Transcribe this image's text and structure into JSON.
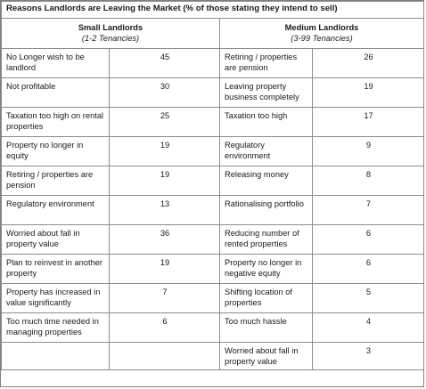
{
  "title": "Reasons Landlords are Leaving the Market (% of those stating they intend to sell)",
  "small": {
    "heading": "Small Landlords",
    "subheading": "(1-2 Tenancies)",
    "rows": [
      {
        "reason": "No Longer wish to be landlord",
        "value": "45"
      },
      {
        "reason": "Not profitable",
        "value": "30"
      },
      {
        "reason": "Taxation too high on rental properties",
        "value": "25"
      },
      {
        "reason": "Property no longer in equity",
        "value": "19"
      },
      {
        "reason": "Retiring / properties are pension",
        "value": "19"
      },
      {
        "reason": "Regulatory environment",
        "value": "13"
      },
      {
        "reason": "Worried about fall in property value",
        "value": "36"
      },
      {
        "reason": "Plan to reinvest in another property",
        "value": "19"
      },
      {
        "reason": "Property has increased in value significantly",
        "value": "7"
      },
      {
        "reason": "Too much time needed in managing properties",
        "value": "6"
      },
      {
        "reason": "",
        "value": ""
      }
    ]
  },
  "medium": {
    "heading": "Medium Landlords",
    "subheading": "(3-99 Tenancies)",
    "rows": [
      {
        "reason": "Retiring / properties are pension",
        "value": "26"
      },
      {
        "reason": "Leaving property business completely",
        "value": "19"
      },
      {
        "reason": "Taxation too high",
        "value": "17"
      },
      {
        "reason": "Regulatory environment",
        "value": "9"
      },
      {
        "reason": "Releasing money",
        "value": "8"
      },
      {
        "reason": "Rationalising portfolio",
        "value": "7"
      },
      {
        "reason": "Reducing number of rented properties",
        "value": "6"
      },
      {
        "reason": "Property no longer in negative equity",
        "value": "6"
      },
      {
        "reason": "Shifting location of properties",
        "value": "5"
      },
      {
        "reason": "Too much hassle",
        "value": "4"
      },
      {
        "reason": "Worried about fall in property value",
        "value": "3"
      }
    ]
  }
}
